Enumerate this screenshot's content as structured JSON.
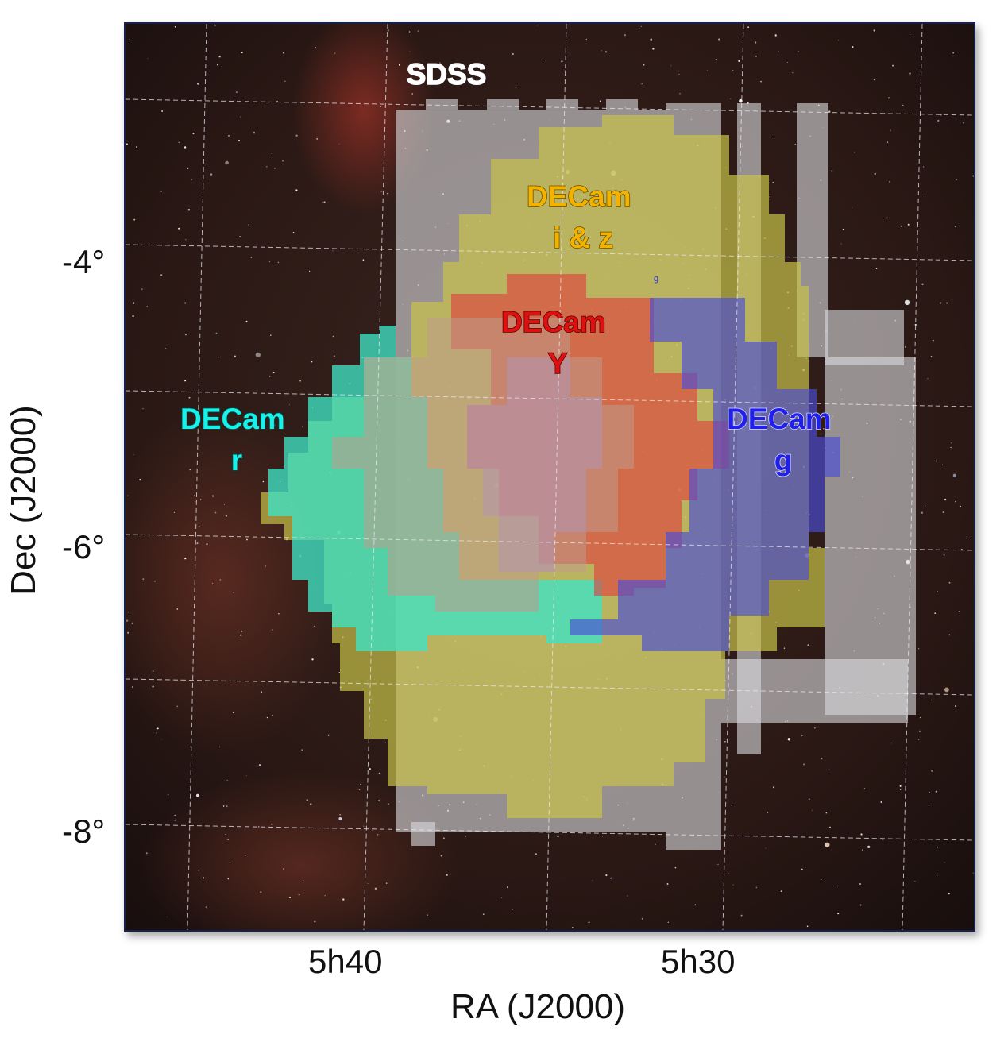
{
  "map": {
    "x_axis_title": "RA (J2000)",
    "y_axis_title": "Dec (J2000)",
    "ra_ticks": [
      "5h40",
      "5h30"
    ],
    "dec_ticks": [
      "-4°",
      "-6°",
      "-8°"
    ],
    "colors": {
      "sdss": "#d8d8dc",
      "decam_iz": "#c8c24a",
      "decam_y": "#e23a3a",
      "decam_r": "#3fe3c4",
      "decam_g": "#4a4ed6",
      "frame_border": "#14214a"
    },
    "regions": [
      {
        "id": "sdss",
        "label_lines": [
          "SDSS"
        ],
        "label_color": "#ffffff"
      },
      {
        "id": "decam-iz",
        "label_lines": [
          "DECam",
          "i & z"
        ],
        "label_color": "#f2b200"
      },
      {
        "id": "decam-y",
        "label_lines": [
          "DECam",
          "Y"
        ],
        "label_color": "#e01010"
      },
      {
        "id": "decam-r",
        "label_lines": [
          "DECam",
          "r"
        ],
        "label_color": "#18f0e8"
      },
      {
        "id": "decam-g",
        "label_lines": [
          "DECam",
          "g"
        ],
        "label_color": "#2020e8"
      }
    ],
    "small_marks": [
      "g"
    ]
  }
}
